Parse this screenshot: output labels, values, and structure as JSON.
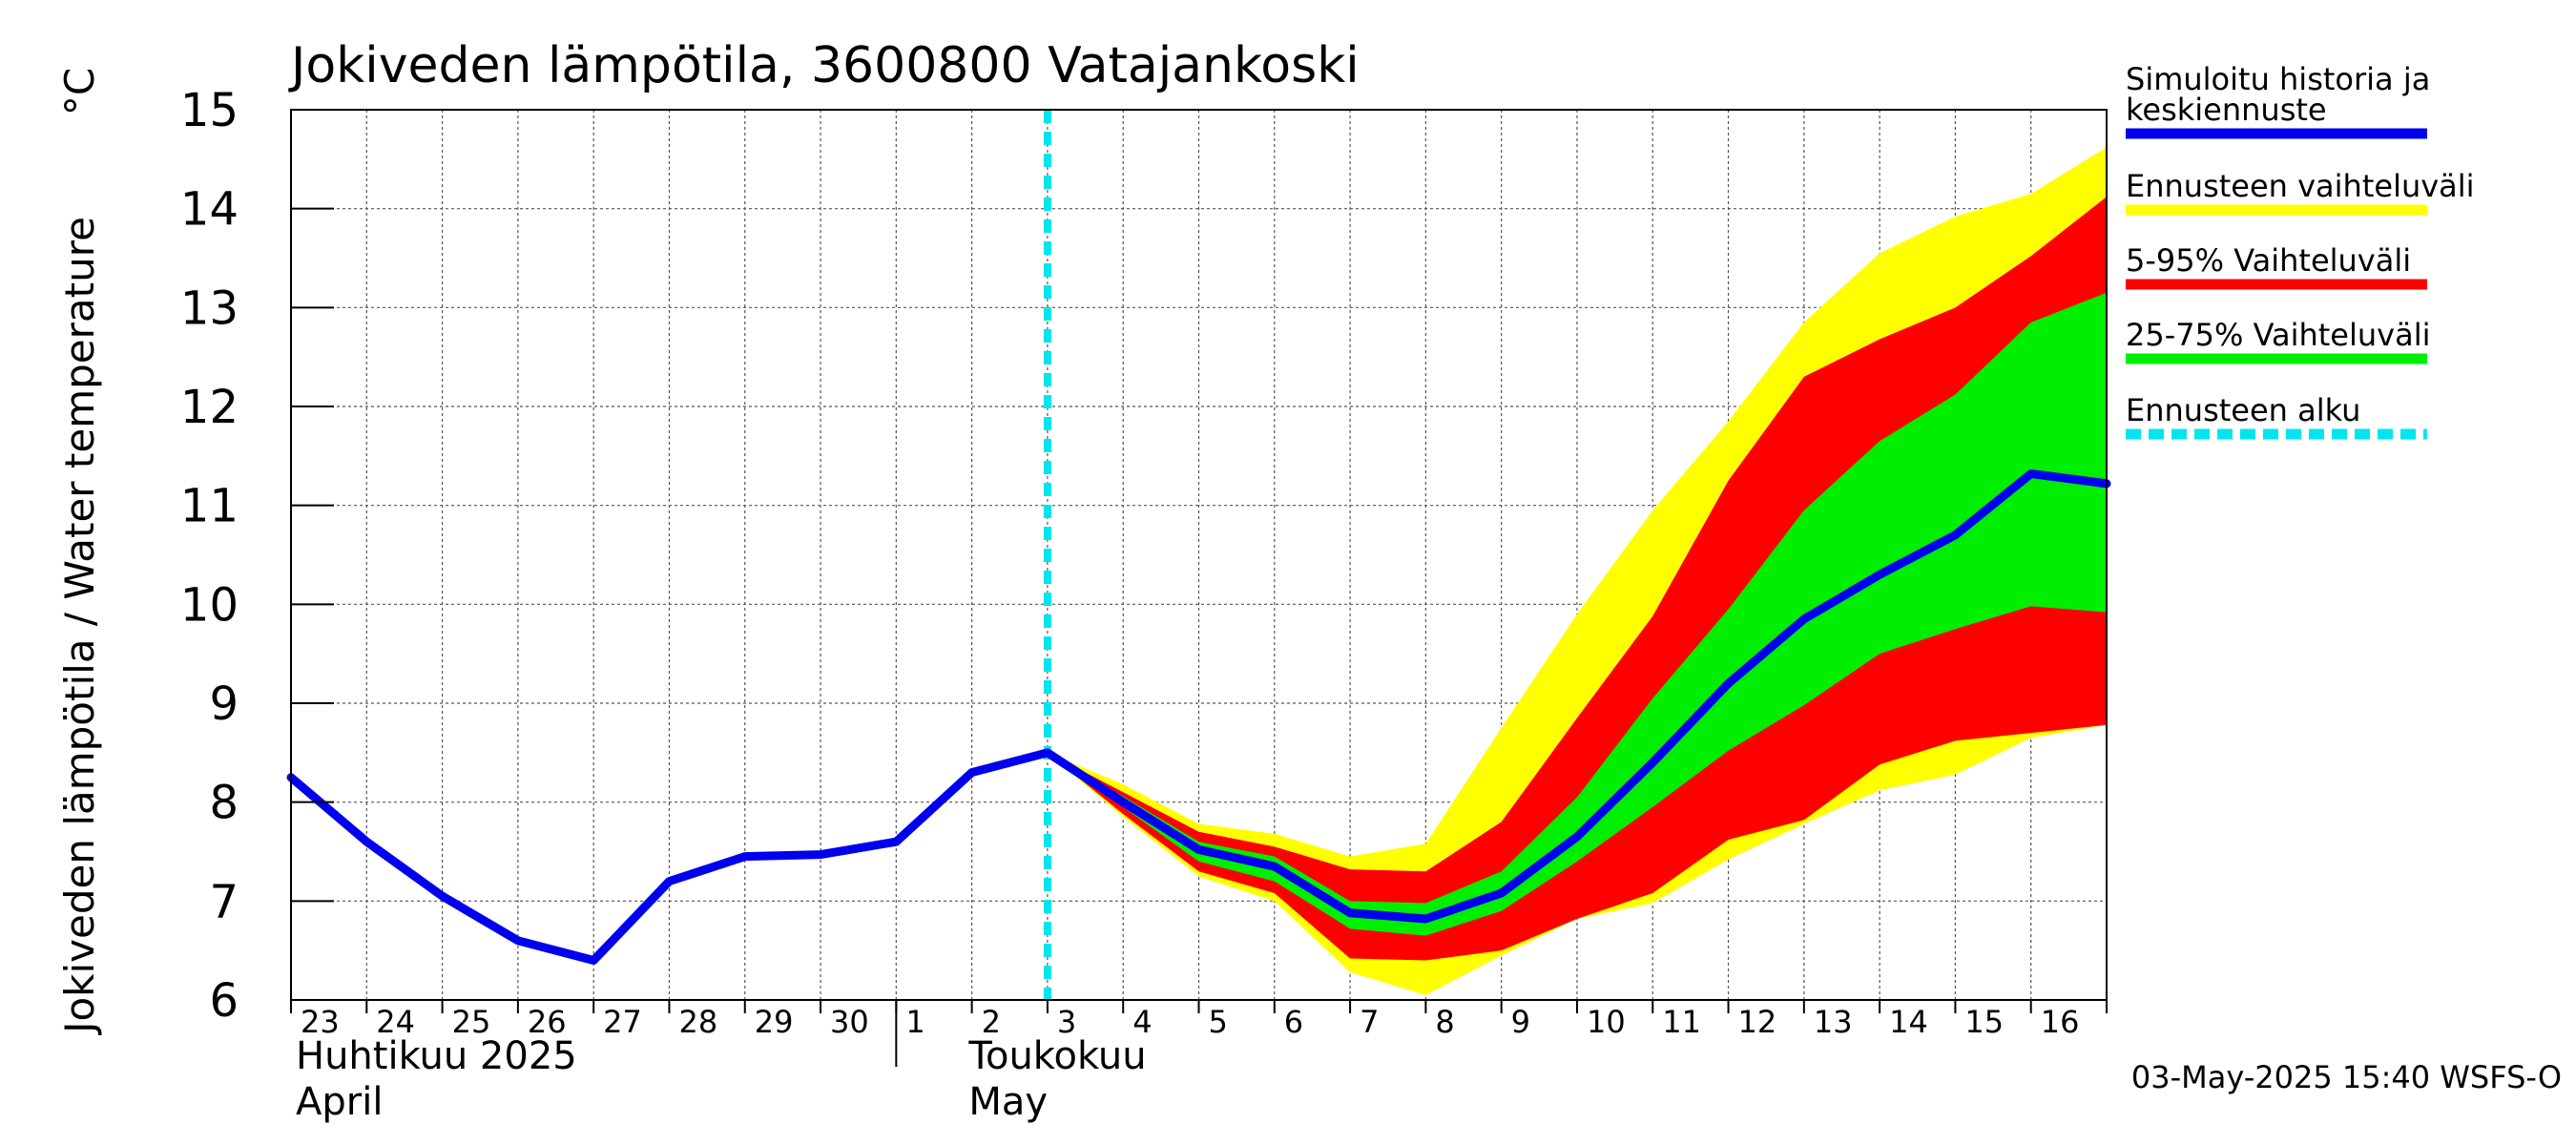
{
  "chart_data": {
    "type": "area",
    "title": "Jokiveden lämpötila, 3600800 Vatajankoski",
    "ylabel": "Jokiveden lämpötila / Water temperature",
    "yunit": "°C",
    "ylim": [
      6,
      15
    ],
    "yticks": [
      6,
      7,
      8,
      9,
      10,
      11,
      12,
      13,
      14,
      15
    ],
    "x_range": [
      "2025-04-23",
      "2025-05-17"
    ],
    "x_tick_labels": [
      "23",
      "24",
      "25",
      "26",
      "27",
      "28",
      "29",
      "30",
      "1",
      "2",
      "3",
      "4",
      "5",
      "6",
      "7",
      "8",
      "9",
      "10",
      "11",
      "12",
      "13",
      "14",
      "15",
      "16"
    ],
    "month_labels": [
      {
        "line1": "Huhtikuu  2025",
        "line2": "April"
      },
      {
        "line1": "Toukokuu",
        "line2": "May"
      }
    ],
    "grid": true,
    "legend_position": "right",
    "forecast_start": "2025-05-03",
    "series": [
      {
        "name": "Simuloitu historia ja keskiennuste",
        "color": "#0000ee",
        "x": [
          "2025-04-23",
          "2025-04-24",
          "2025-04-25",
          "2025-04-26",
          "2025-04-27",
          "2025-04-28",
          "2025-04-29",
          "2025-04-30",
          "2025-05-01",
          "2025-05-02",
          "2025-05-03",
          "2025-05-04",
          "2025-05-05",
          "2025-05-06",
          "2025-05-07",
          "2025-05-08",
          "2025-05-09",
          "2025-05-10",
          "2025-05-11",
          "2025-05-12",
          "2025-05-13",
          "2025-05-14",
          "2025-05-15",
          "2025-05-16",
          "2025-05-17"
        ],
        "y": [
          8.25,
          7.6,
          7.05,
          6.6,
          6.4,
          7.2,
          7.45,
          7.47,
          7.6,
          8.3,
          8.5,
          8.0,
          7.52,
          7.35,
          6.88,
          6.82,
          7.08,
          7.65,
          8.4,
          9.2,
          9.85,
          10.3,
          10.7,
          11.32,
          11.22
        ]
      },
      {
        "name": "Ennusteen vaihteluväli",
        "color": "#ffff00",
        "x": [
          "2025-05-03",
          "2025-05-04",
          "2025-05-05",
          "2025-05-06",
          "2025-05-07",
          "2025-05-08",
          "2025-05-09",
          "2025-05-10",
          "2025-05-11",
          "2025-05-12",
          "2025-05-13",
          "2025-05-14",
          "2025-05-15",
          "2025-05-16",
          "2025-05-17"
        ],
        "low": [
          8.5,
          7.85,
          7.25,
          7.0,
          6.28,
          6.05,
          6.45,
          6.82,
          6.98,
          7.42,
          7.78,
          8.12,
          8.28,
          8.65,
          8.78
        ],
        "high": [
          8.5,
          8.18,
          7.78,
          7.68,
          7.45,
          7.58,
          8.75,
          9.9,
          10.95,
          11.85,
          12.85,
          13.55,
          13.92,
          14.15,
          14.62
        ]
      },
      {
        "name": "5-95% Vaihteluväli",
        "color": "#ff0000",
        "x": [
          "2025-05-03",
          "2025-05-04",
          "2025-05-05",
          "2025-05-06",
          "2025-05-07",
          "2025-05-08",
          "2025-05-09",
          "2025-05-10",
          "2025-05-11",
          "2025-05-12",
          "2025-05-13",
          "2025-05-14",
          "2025-05-15",
          "2025-05-16",
          "2025-05-17"
        ],
        "low": [
          8.5,
          7.88,
          7.3,
          7.08,
          6.42,
          6.4,
          6.5,
          6.82,
          7.08,
          7.62,
          7.82,
          8.38,
          8.62,
          8.7,
          8.78
        ],
        "high": [
          8.5,
          8.1,
          7.7,
          7.55,
          7.32,
          7.3,
          7.8,
          8.85,
          9.88,
          11.25,
          12.3,
          12.68,
          13.0,
          13.52,
          14.12
        ]
      },
      {
        "name": "25-75% Vaihteluväli",
        "color": "#00ee00",
        "x": [
          "2025-05-03",
          "2025-05-04",
          "2025-05-05",
          "2025-05-06",
          "2025-05-07",
          "2025-05-08",
          "2025-05-09",
          "2025-05-10",
          "2025-05-11",
          "2025-05-12",
          "2025-05-13",
          "2025-05-14",
          "2025-05-15",
          "2025-05-16",
          "2025-05-17"
        ],
        "low": [
          8.5,
          7.95,
          7.4,
          7.2,
          6.72,
          6.65,
          6.9,
          7.4,
          7.95,
          8.52,
          8.98,
          9.5,
          9.75,
          9.98,
          9.92
        ],
        "high": [
          8.5,
          8.06,
          7.6,
          7.45,
          7.0,
          6.98,
          7.3,
          8.05,
          9.05,
          9.95,
          10.95,
          11.65,
          12.12,
          12.85,
          13.15
        ]
      }
    ],
    "legend": [
      {
        "label_lines": [
          "Simuloitu historia ja",
          "keskiennuste"
        ],
        "color": "#0000ee",
        "style": "solid"
      },
      {
        "label_lines": [
          "Ennusteen vaihteluväli"
        ],
        "color": "#ffff00",
        "style": "solid"
      },
      {
        "label_lines": [
          "5-95% Vaihteluväli"
        ],
        "color": "#ff0000",
        "style": "solid"
      },
      {
        "label_lines": [
          "25-75% Vaihteluväli"
        ],
        "color": "#00ee00",
        "style": "solid"
      },
      {
        "label_lines": [
          "Ennusteen alku"
        ],
        "color": "#00e5ee",
        "style": "dashed"
      }
    ],
    "timestamp": "03-May-2025 15:40 WSFS-O"
  }
}
